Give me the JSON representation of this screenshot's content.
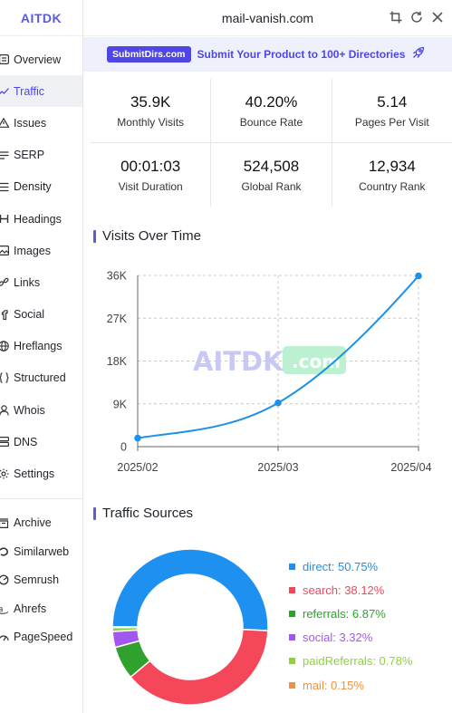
{
  "brand": "AITDK",
  "header": {
    "domain": "mail-vanish.com"
  },
  "nav": {
    "primary": [
      {
        "label": "Overview",
        "icon": "overview-icon"
      },
      {
        "label": "Traffic",
        "icon": "trend-icon",
        "active": true
      },
      {
        "label": "Issues",
        "icon": "warning-icon"
      },
      {
        "label": "SERP",
        "icon": "serp-icon"
      },
      {
        "label": "Density",
        "icon": "density-icon"
      },
      {
        "label": "Headings",
        "icon": "heading-icon"
      },
      {
        "label": "Images",
        "icon": "image-icon"
      },
      {
        "label": "Links",
        "icon": "link-icon"
      },
      {
        "label": "Social",
        "icon": "social-icon"
      },
      {
        "label": "Hreflangs",
        "icon": "globe-icon"
      },
      {
        "label": "Structured",
        "icon": "braces-icon"
      },
      {
        "label": "Whois",
        "icon": "whois-icon"
      },
      {
        "label": "DNS",
        "icon": "dns-icon"
      },
      {
        "label": "Settings",
        "icon": "gear-icon"
      }
    ],
    "external": [
      {
        "label": "Archive",
        "icon": "archive-icon"
      },
      {
        "label": "Similarweb",
        "icon": "similarweb-icon"
      },
      {
        "label": "Semrush",
        "icon": "semrush-icon"
      },
      {
        "label": "Ahrefs",
        "icon": "ahrefs-icon"
      },
      {
        "label": "PageSpeed",
        "icon": "pagespeed-icon"
      }
    ]
  },
  "promo": {
    "pill": "SubmitDirs.com",
    "text": "Submit Your Product to 100+ Directories"
  },
  "stats": [
    {
      "value": "35.9K",
      "label": "Monthly Visits"
    },
    {
      "value": "40.20%",
      "label": "Bounce Rate"
    },
    {
      "value": "5.14",
      "label": "Pages Per Visit"
    },
    {
      "value": "00:01:03",
      "label": "Visit Duration"
    },
    {
      "value": "524,508",
      "label": "Global Rank"
    },
    {
      "value": "12,934",
      "label": "Country Rank"
    }
  ],
  "sections": {
    "visits_title": "Visits Over Time",
    "sources_title": "Traffic Sources"
  },
  "watermark": {
    "main": "AITDK",
    "suffix": ".com"
  },
  "chart_data": [
    {
      "type": "line",
      "title": "Visits Over Time",
      "x": [
        "2025/02",
        "2025/03",
        "2025/04"
      ],
      "series": [
        {
          "values": [
            1800,
            9200,
            35900
          ]
        }
      ],
      "yticks": [
        "0",
        "9K",
        "18K",
        "27K",
        "36K"
      ],
      "ylim": [
        0,
        36000
      ],
      "grid": true,
      "color": "#1e90e8"
    },
    {
      "type": "pie",
      "title": "Traffic Sources",
      "donut": true,
      "slices": [
        {
          "label": "direct",
          "value": 50.75,
          "text": "direct: 50.75%",
          "color": "#1e90f0"
        },
        {
          "label": "search",
          "value": 38.12,
          "text": "search: 38.12%",
          "color": "#f5475a"
        },
        {
          "label": "referrals",
          "value": 6.87,
          "text": "referrals: 6.87%",
          "color": "#2fa12c"
        },
        {
          "label": "social",
          "value": 3.32,
          "text": "social: 3.32%",
          "color": "#a257f0"
        },
        {
          "label": "paidReferrals",
          "value": 0.78,
          "text": "paidReferrals: 0.78%",
          "color": "#8ed13f"
        },
        {
          "label": "mail",
          "value": 0.15,
          "text": "mail: 0.15%",
          "color": "#f5913a"
        }
      ],
      "legend": "right"
    }
  ]
}
